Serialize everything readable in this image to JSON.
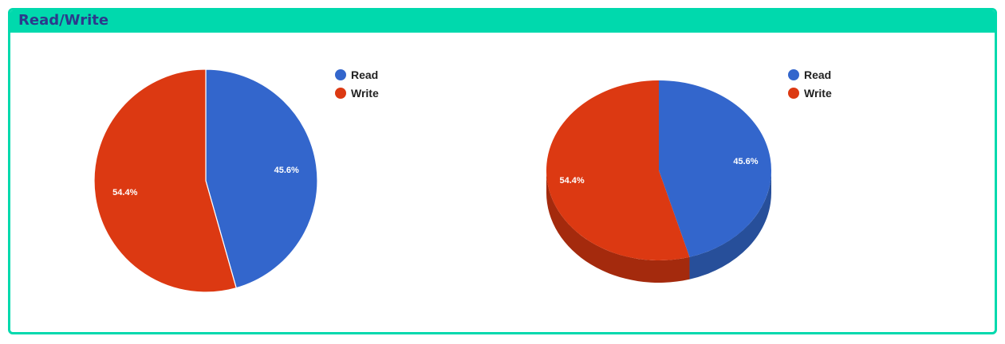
{
  "panel": {
    "title": "Read/Write"
  },
  "colors": {
    "header": "#00d9ad",
    "title": "#2c3a8c",
    "read": "#3366cc",
    "write": "#dc3912",
    "read_side": "#274f9a",
    "write_side": "#a42a0d"
  },
  "chart_data": [
    {
      "type": "pie",
      "style": "2d",
      "title": "",
      "slices": [
        {
          "label": "Read",
          "percent": 45.6,
          "value_label": "45.6%"
        },
        {
          "label": "Write",
          "percent": 54.4,
          "value_label": "54.4%"
        }
      ],
      "legend": {
        "placement": "right",
        "entries": [
          "Read",
          "Write"
        ]
      }
    },
    {
      "type": "pie",
      "style": "3d",
      "title": "",
      "slices": [
        {
          "label": "Read",
          "percent": 45.6,
          "value_label": "45.6%"
        },
        {
          "label": "Write",
          "percent": 54.4,
          "value_label": "54.4%"
        }
      ],
      "legend": {
        "placement": "right",
        "entries": [
          "Read",
          "Write"
        ]
      }
    }
  ]
}
